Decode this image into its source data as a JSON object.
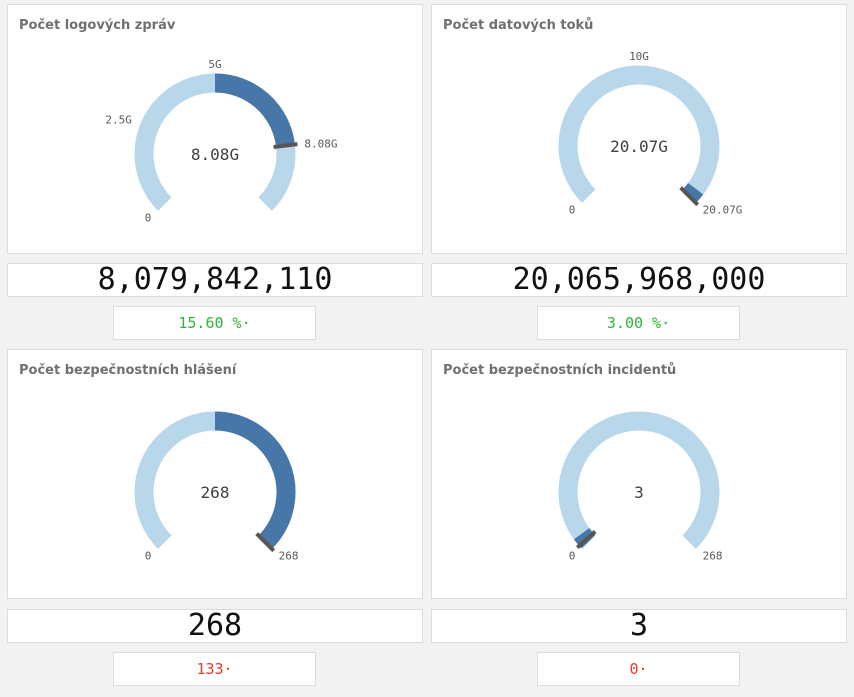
{
  "colors": {
    "track": "#b8d7ea",
    "fill": "#4777a9",
    "needle": "#555555",
    "positive": "#2fb43a",
    "negative": "#e23a2b"
  },
  "panels": [
    {
      "title": "Počet logových zpráv",
      "center_value": "8.08G",
      "fraction": 0.808,
      "labels": [
        {
          "text": "0",
          "frac": 0
        },
        {
          "text": "2.5G",
          "frac": 0.25
        },
        {
          "text": "5G",
          "frac": 0.5
        },
        {
          "text": "8.08G",
          "frac": 0.808
        }
      ],
      "kpi": "8,079,842,110",
      "delta": "15.60 %·",
      "delta_color": "#2fb43a"
    },
    {
      "title": "Počet datových toků",
      "center_value": "20.07G",
      "fraction": 1.0,
      "labels": [
        {
          "text": "0",
          "frac": 0
        },
        {
          "text": "10G",
          "frac": 0.5
        },
        {
          "text": "20.07G",
          "frac": 1.0
        }
      ],
      "kpi": "20,065,968,000",
      "delta": "3.00 %·",
      "delta_color": "#2fb43a"
    },
    {
      "title": "Počet bezpečnostních hlášení",
      "center_value": "268",
      "fraction": 1.0,
      "labels": [
        {
          "text": "0",
          "frac": 0
        },
        {
          "text": "268",
          "frac": 1.0
        }
      ],
      "kpi": "268",
      "delta": "133·",
      "delta_color": "#e23a2b"
    },
    {
      "title": "Počet bezpečnostních incidentů",
      "center_value": "3",
      "fraction": 0.011,
      "labels": [
        {
          "text": "0",
          "frac": 0
        },
        {
          "text": "268",
          "frac": 1.0
        }
      ],
      "kpi": "3",
      "delta": "0·",
      "delta_color": "#e23a2b"
    }
  ]
}
